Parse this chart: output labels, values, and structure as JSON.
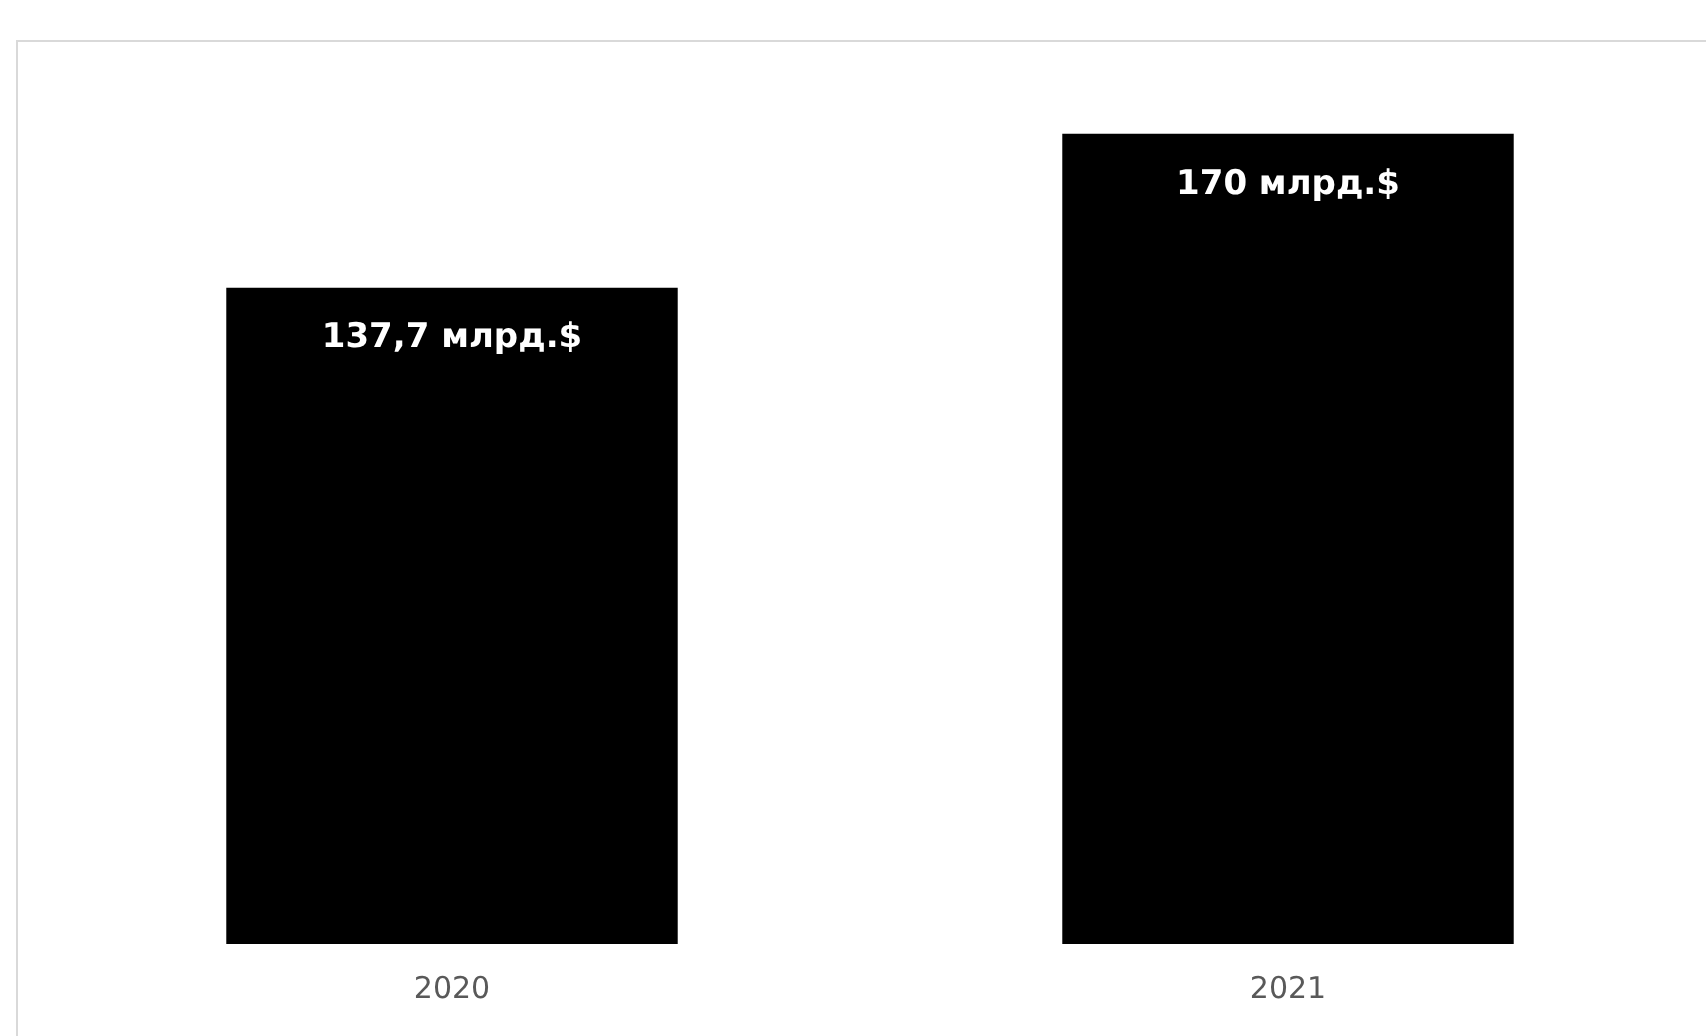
{
  "chart_data": {
    "type": "bar",
    "relative": false,
    "categories": [
      "2020",
      "2021"
    ],
    "series": [
      {
        "color": "#000000",
        "values": [
          137.7,
          170
        ],
        "value_labels": [
          "137,7 млрд.$",
          "170 млрд.$"
        ]
      }
    ],
    "grid": false,
    "legend": false
  }
}
